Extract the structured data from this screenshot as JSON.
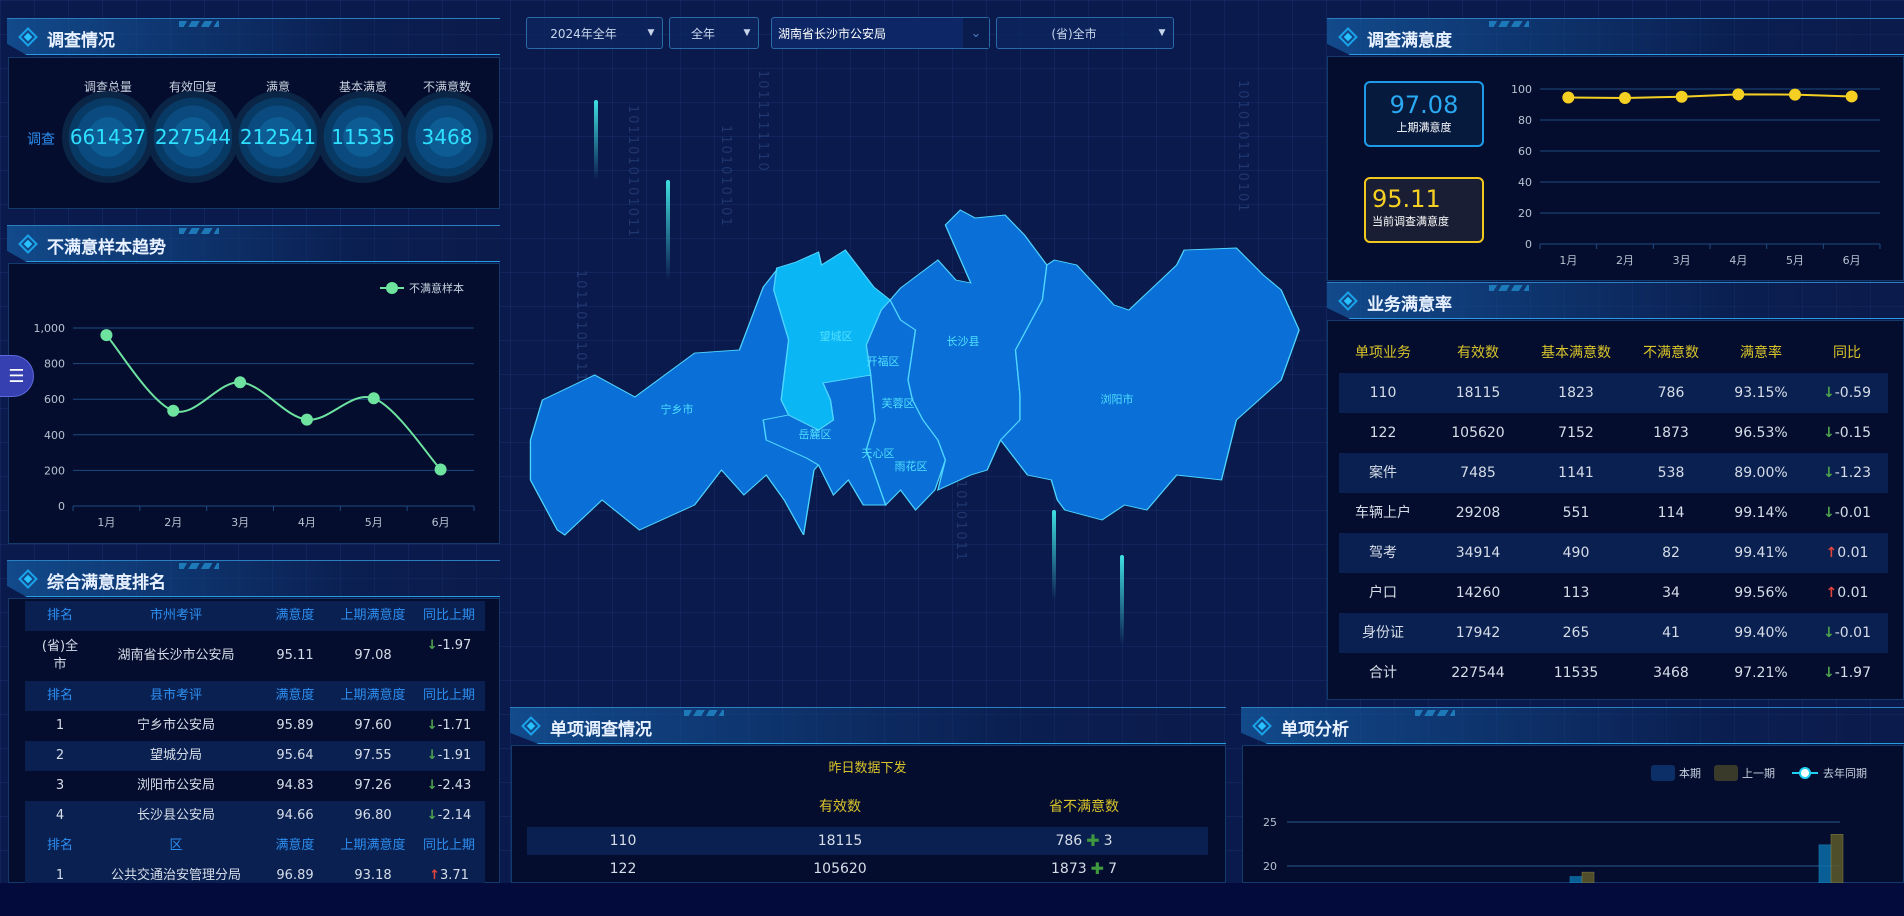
{
  "filters": {
    "year": "2024年全年",
    "period": "全年",
    "org": "湖南省长沙市公安局",
    "area": "(省)全市"
  },
  "survey": {
    "title": "调查情况",
    "row_label": "调查",
    "items": [
      {
        "label": "调查总量",
        "value": "661437"
      },
      {
        "label": "有效回复",
        "value": "227544"
      },
      {
        "label": "满意",
        "value": "212541"
      },
      {
        "label": "基本满意",
        "value": "11535"
      },
      {
        "label": "不满意数",
        "value": "3468"
      }
    ]
  },
  "trend": {
    "title": "不满意样本趋势",
    "legend": "不满意样本"
  },
  "ranking": {
    "title": "综合满意度排名",
    "sections": [
      {
        "header": [
          "排名",
          "市州考评",
          "满意度",
          "上期满意度",
          "同比上期"
        ],
        "rows": [
          [
            "(省)全市",
            "湖南省长沙市公安局",
            "95.11",
            "97.08",
            "-1.97",
            "down"
          ]
        ]
      },
      {
        "header": [
          "排名",
          "县市考评",
          "满意度",
          "上期满意度",
          "同比上期"
        ],
        "rows": [
          [
            "1",
            "宁乡市公安局",
            "95.89",
            "97.60",
            "-1.71",
            "down"
          ],
          [
            "2",
            "望城分局",
            "95.64",
            "97.55",
            "-1.91",
            "down"
          ],
          [
            "3",
            "浏阳市公安局",
            "94.83",
            "97.26",
            "-2.43",
            "down"
          ],
          [
            "4",
            "长沙县公安局",
            "94.66",
            "96.80",
            "-2.14",
            "down"
          ]
        ]
      },
      {
        "header": [
          "排名",
          "区",
          "满意度",
          "上期满意度",
          "同比上期"
        ],
        "rows": [
          [
            "1",
            "公共交通治安管理分局",
            "96.89",
            "93.18",
            "3.71",
            "up"
          ]
        ]
      }
    ]
  },
  "map": {
    "regions": [
      "望城区",
      "开福区",
      "长沙县",
      "宁乡市",
      "芙蓉区",
      "岳麓区",
      "天心区",
      "雨花区",
      "浏阳市"
    ],
    "highlighted": "望城区",
    "binary": [
      "1011010101011",
      "1101010101",
      "101101010111",
      "1011111110",
      "1010101110101",
      "10101011"
    ]
  },
  "satisfaction": {
    "title": "调查满意度",
    "prev_value": "97.08",
    "prev_label": "上期满意度",
    "cur_value": "95.11",
    "cur_label": "当前调查满意度"
  },
  "biz": {
    "title": "业务满意率",
    "header": [
      "单项业务",
      "有效数",
      "基本满意数",
      "不满意数",
      "满意率",
      "同比"
    ],
    "rows": [
      [
        "110",
        "18115",
        "1823",
        "786",
        "93.15%",
        "-0.59",
        "down"
      ],
      [
        "122",
        "105620",
        "7152",
        "1873",
        "96.53%",
        "-0.15",
        "down"
      ],
      [
        "案件",
        "7485",
        "1141",
        "538",
        "89.00%",
        "-1.23",
        "down"
      ],
      [
        "车辆上户",
        "29208",
        "551",
        "114",
        "99.14%",
        "-0.01",
        "down"
      ],
      [
        "驾考",
        "34914",
        "490",
        "82",
        "99.41%",
        "0.01",
        "up"
      ],
      [
        "户口",
        "14260",
        "113",
        "34",
        "99.56%",
        "0.01",
        "up"
      ],
      [
        "身份证",
        "17942",
        "265",
        "41",
        "99.40%",
        "-0.01",
        "down"
      ],
      [
        "合计",
        "227544",
        "11535",
        "3468",
        "97.21%",
        "-1.97",
        "down"
      ]
    ]
  },
  "single": {
    "title": "单项调查情况",
    "caption": "昨日数据下发",
    "header": [
      "",
      "有效数",
      "省不满意数"
    ],
    "rows": [
      [
        "110",
        "18115",
        "786",
        "3"
      ],
      [
        "122",
        "105620",
        "1873",
        "7"
      ]
    ]
  },
  "analysis": {
    "title": "单项分析"
  },
  "colors": {
    "accent": "#1aa3e8",
    "trend_line": "#6ee3a0",
    "sat_line": "#f5d023",
    "map_fill": "#0a6fd6",
    "map_highlight": "#0bb6f5",
    "down": "#4ea54e",
    "up": "#e0443c"
  },
  "chart_data": [
    {
      "type": "line",
      "name": "trend",
      "categories": [
        "1月",
        "2月",
        "3月",
        "4月",
        "5月",
        "6月"
      ],
      "series": [
        {
          "name": "不满意样本",
          "values": [
            960,
            535,
            695,
            485,
            605,
            205
          ]
        }
      ],
      "ylim": [
        0,
        1000
      ],
      "yticks": [
        "0",
        "200",
        "400",
        "600",
        "800",
        "1,000"
      ],
      "grid": true,
      "legend": "top-right",
      "smooth": true
    },
    {
      "type": "line",
      "name": "satisfaction",
      "categories": [
        "1月",
        "2月",
        "3月",
        "4月",
        "5月",
        "6月"
      ],
      "series": [
        {
          "values": [
            94.5,
            94.2,
            95.0,
            96.5,
            96.4,
            95.2
          ]
        }
      ],
      "ylim": [
        0,
        100
      ],
      "yticks": [
        "0",
        "20",
        "40",
        "60",
        "80",
        "100"
      ],
      "grid": true
    },
    {
      "type": "bar",
      "name": "analysis",
      "series": [
        {
          "name": "本期",
          "values": [
            18.8,
            22.4
          ]
        },
        {
          "name": "上一期",
          "values": [
            19.3,
            23.6
          ]
        },
        {
          "name": "去年同期",
          "values": []
        }
      ],
      "yticks": [
        "20",
        "25"
      ],
      "grid": true,
      "legend": "top-right"
    }
  ]
}
